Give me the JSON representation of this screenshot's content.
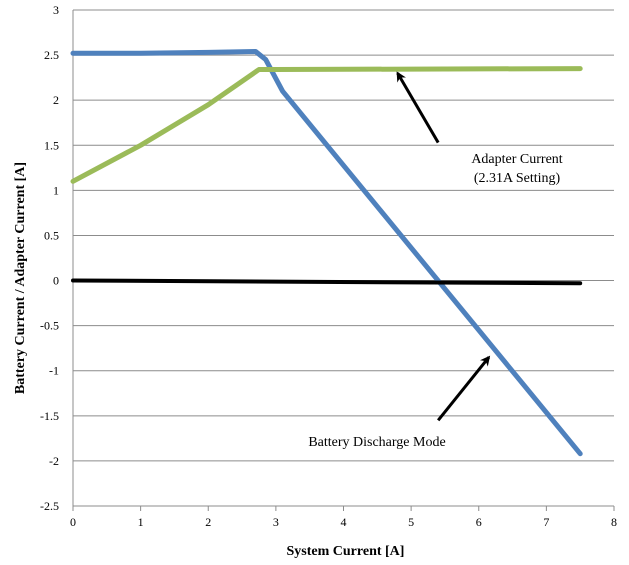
{
  "chart_data": {
    "type": "line",
    "xlabel": "System Current [A]",
    "ylabel": "Battery Current / Adapter Current [A]",
    "xlim": [
      0,
      8
    ],
    "ylim": [
      -2.5,
      3
    ],
    "x_ticks": [
      "0",
      "1",
      "2",
      "3",
      "4",
      "5",
      "6",
      "7",
      "8"
    ],
    "y_ticks": [
      "3",
      "2.5",
      "2",
      "1.5",
      "1",
      "0.5",
      "0",
      "-0.5",
      "-1",
      "-1.5",
      "-2",
      "-2.5"
    ],
    "grid": "horizontal",
    "legend": "none",
    "series": [
      {
        "color": "#4f81bd",
        "x": [
          0,
          1,
          2,
          2.7,
          2.85,
          3.1,
          7.5
        ],
        "y": [
          2.52,
          2.52,
          2.53,
          2.54,
          2.45,
          2.1,
          -1.92
        ]
      },
      {
        "color": "#9bbb59",
        "x": [
          0,
          1,
          2,
          2.75,
          3,
          7.5
        ],
        "y": [
          1.1,
          1.5,
          1.95,
          2.34,
          2.34,
          2.35
        ]
      },
      {
        "color": "#000000",
        "x": [
          0,
          7.5
        ],
        "y": [
          0,
          -0.03
        ]
      }
    ],
    "annotations": [
      {
        "lines": [
          "Adapter Current",
          "(2.31A Setting)"
        ],
        "arrow_from": [
          5.4,
          1.53
        ],
        "arrow_to": [
          4.8,
          2.3
        ]
      },
      {
        "lines": [
          "Battery Discharge Mode"
        ],
        "arrow_from": [
          5.4,
          -1.55
        ],
        "arrow_to": [
          6.15,
          -0.85
        ]
      }
    ]
  }
}
